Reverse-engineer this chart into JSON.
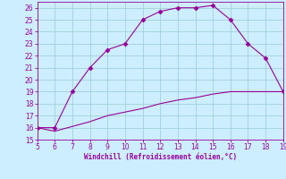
{
  "xlabel": "Windchill (Refroidissement éolien,°C)",
  "x_upper": [
    5,
    6,
    7,
    8,
    9,
    10,
    11,
    12,
    13,
    14,
    15,
    16,
    17,
    18,
    19
  ],
  "y_upper": [
    16,
    16,
    19,
    21,
    22.5,
    23,
    25,
    25.7,
    26,
    26,
    26.2,
    25,
    23,
    21.8,
    19
  ],
  "x_lower": [
    5,
    6,
    7,
    8,
    9,
    10,
    11,
    12,
    13,
    14,
    15,
    16,
    17,
    18,
    19
  ],
  "y_lower": [
    16,
    15.7,
    16.1,
    16.5,
    17.0,
    17.3,
    17.6,
    18.0,
    18.3,
    18.5,
    18.8,
    19.0,
    19.0,
    19.0,
    19.0
  ],
  "line_color": "#990099",
  "marker": "D",
  "marker_size": 2.5,
  "bg_color": "#cceeff",
  "grid_color": "#99cccc",
  "tick_color": "#990099",
  "label_color": "#990099",
  "xlim": [
    5,
    19
  ],
  "ylim": [
    15,
    26.5
  ],
  "yticks": [
    15,
    16,
    17,
    18,
    19,
    20,
    21,
    22,
    23,
    24,
    25,
    26
  ],
  "xticks": [
    5,
    6,
    7,
    8,
    9,
    10,
    11,
    12,
    13,
    14,
    15,
    16,
    17,
    18,
    19
  ]
}
